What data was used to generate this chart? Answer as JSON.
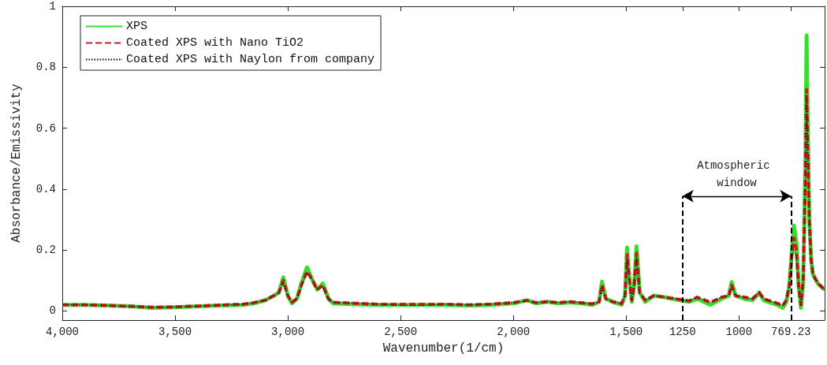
{
  "chart_data": {
    "type": "line",
    "xlabel": "Wavenumber(1/cm)",
    "ylabel": "Absorbance/Emissivity",
    "x": [
      4000,
      3900,
      3800,
      3700,
      3600,
      3500,
      3400,
      3300,
      3200,
      3150,
      3100,
      3062,
      3040,
      3020,
      3000,
      2982,
      2960,
      2940,
      2915,
      2890,
      2870,
      2845,
      2820,
      2800,
      2700,
      2600,
      2500,
      2400,
      2300,
      2200,
      2100,
      2000,
      1939,
      1900,
      1850,
      1800,
      1750,
      1700,
      1650,
      1620,
      1607,
      1590,
      1560,
      1520,
      1505,
      1496,
      1485,
      1475,
      1465,
      1454,
      1440,
      1415,
      1377,
      1330,
      1265,
      1220,
      1185,
      1126,
      1077,
      1045,
      1032,
      1015,
      976,
      940,
      910,
      890,
      871,
      830,
      805,
      790,
      777,
      765,
      756,
      745,
      735,
      725,
      715,
      705,
      700,
      695,
      688,
      680,
      672,
      650,
      620
    ],
    "series": [
      {
        "name": "XPS",
        "color": "#33e02a",
        "line_style": "solid",
        "values": [
          0.02,
          0.02,
          0.018,
          0.015,
          0.01,
          0.012,
          0.015,
          0.018,
          0.02,
          0.025,
          0.035,
          0.05,
          0.06,
          0.11,
          0.05,
          0.025,
          0.04,
          0.09,
          0.143,
          0.1,
          0.07,
          0.09,
          0.04,
          0.025,
          0.022,
          0.02,
          0.02,
          0.02,
          0.02,
          0.018,
          0.02,
          0.025,
          0.035,
          0.025,
          0.03,
          0.025,
          0.028,
          0.025,
          0.02,
          0.03,
          0.096,
          0.04,
          0.03,
          0.02,
          0.05,
          0.208,
          0.1,
          0.03,
          0.08,
          0.212,
          0.06,
          0.03,
          0.05,
          0.045,
          0.035,
          0.03,
          0.04,
          0.02,
          0.04,
          0.05,
          0.095,
          0.05,
          0.04,
          0.035,
          0.06,
          0.035,
          0.03,
          0.02,
          0.01,
          0.03,
          0.08,
          0.2,
          0.28,
          0.22,
          0.08,
          0.01,
          0.1,
          0.5,
          0.904,
          0.6,
          0.3,
          0.17,
          0.12,
          0.09,
          0.07
        ]
      },
      {
        "name": "Coated XPS with Nano TiO2",
        "color": "#cc2020",
        "line_style": "dashed",
        "values": [
          0.02,
          0.02,
          0.018,
          0.015,
          0.012,
          0.013,
          0.016,
          0.019,
          0.022,
          0.027,
          0.035,
          0.05,
          0.06,
          0.1,
          0.05,
          0.028,
          0.04,
          0.085,
          0.13,
          0.1,
          0.07,
          0.085,
          0.04,
          0.028,
          0.025,
          0.022,
          0.022,
          0.022,
          0.022,
          0.02,
          0.022,
          0.027,
          0.035,
          0.027,
          0.03,
          0.027,
          0.03,
          0.027,
          0.023,
          0.03,
          0.085,
          0.04,
          0.03,
          0.024,
          0.05,
          0.185,
          0.1,
          0.035,
          0.08,
          0.19,
          0.06,
          0.035,
          0.05,
          0.045,
          0.038,
          0.033,
          0.045,
          0.028,
          0.045,
          0.05,
          0.085,
          0.05,
          0.045,
          0.04,
          0.06,
          0.04,
          0.035,
          0.025,
          0.018,
          0.035,
          0.08,
          0.19,
          0.24,
          0.2,
          0.08,
          0.02,
          0.1,
          0.45,
          0.727,
          0.55,
          0.3,
          0.17,
          0.12,
          0.09,
          0.07
        ]
      },
      {
        "name": "Coated XPS with Naylon from company",
        "color": "#000000",
        "line_style": "dotted",
        "values": [
          0.02,
          0.02,
          0.018,
          0.015,
          0.012,
          0.013,
          0.016,
          0.019,
          0.022,
          0.027,
          0.035,
          0.05,
          0.06,
          0.095,
          0.05,
          0.028,
          0.04,
          0.08,
          0.125,
          0.1,
          0.07,
          0.08,
          0.04,
          0.028,
          0.025,
          0.022,
          0.019,
          0.019,
          0.022,
          0.02,
          0.022,
          0.027,
          0.033,
          0.027,
          0.03,
          0.027,
          0.03,
          0.027,
          0.023,
          0.03,
          0.08,
          0.04,
          0.03,
          0.024,
          0.05,
          0.17,
          0.1,
          0.035,
          0.08,
          0.18,
          0.06,
          0.035,
          0.05,
          0.045,
          0.038,
          0.033,
          0.045,
          0.028,
          0.045,
          0.05,
          0.08,
          0.05,
          0.045,
          0.04,
          0.06,
          0.04,
          0.035,
          0.025,
          0.018,
          0.035,
          0.08,
          0.18,
          0.2,
          0.18,
          0.08,
          0.02,
          0.1,
          0.44,
          0.7,
          0.55,
          0.3,
          0.17,
          0.12,
          0.09,
          0.07
        ]
      }
    ],
    "xlim": [
      4000,
      620
    ],
    "xticks": [
      {
        "value": 4000,
        "label": "4,000"
      },
      {
        "value": 3500,
        "label": "3,500"
      },
      {
        "value": 3000,
        "label": "3,000"
      },
      {
        "value": 2500,
        "label": "2,500"
      },
      {
        "value": 2000,
        "label": "2,000"
      },
      {
        "value": 1500,
        "label": "1,500"
      },
      1250,
      1000,
      769.23
    ],
    "ylim": [
      -0.03,
      1
    ],
    "yticks": [
      0,
      0.2,
      0.4,
      0.6,
      0.8,
      1
    ],
    "ref_lines": [
      {
        "axis": "x",
        "value": 1250,
        "color": "#000000",
        "line_style": "dashed"
      },
      {
        "axis": "x",
        "value": 769.23,
        "color": "#000000",
        "line_style": "dashed"
      }
    ],
    "annotations": [
      "Atmospheric window"
    ],
    "grid": false,
    "legend": "top left",
    "marker": "none"
  }
}
